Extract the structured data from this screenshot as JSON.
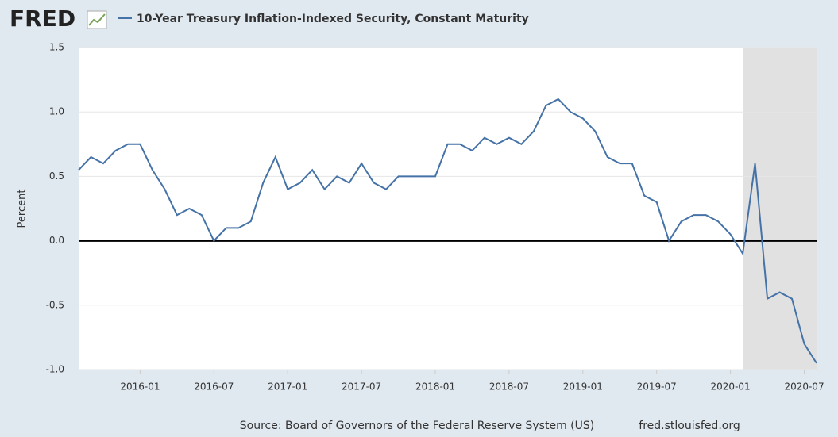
{
  "logo": "FRED",
  "chart_data": {
    "type": "line",
    "x": [
      "2015-08",
      "2015-09",
      "2015-10",
      "2015-11",
      "2015-12",
      "2016-01",
      "2016-02",
      "2016-03",
      "2016-04",
      "2016-05",
      "2016-06",
      "2016-07",
      "2016-08",
      "2016-09",
      "2016-10",
      "2016-11",
      "2016-12",
      "2017-01",
      "2017-02",
      "2017-03",
      "2017-04",
      "2017-05",
      "2017-06",
      "2017-07",
      "2017-08",
      "2017-09",
      "2017-10",
      "2017-11",
      "2017-12",
      "2018-01",
      "2018-02",
      "2018-03",
      "2018-04",
      "2018-05",
      "2018-06",
      "2018-07",
      "2018-08",
      "2018-09",
      "2018-10",
      "2018-11",
      "2018-12",
      "2019-01",
      "2019-02",
      "2019-03",
      "2019-04",
      "2019-05",
      "2019-06",
      "2019-07",
      "2019-08",
      "2019-09",
      "2019-10",
      "2019-11",
      "2019-12",
      "2020-01",
      "2020-02",
      "2020-03",
      "2020-04",
      "2020-05",
      "2020-06",
      "2020-07",
      "2020-08"
    ],
    "series": [
      {
        "name": "10-Year Treasury Inflation-Indexed Security, Constant Maturity",
        "color": "#4572a7",
        "values": [
          0.55,
          0.65,
          0.6,
          0.7,
          0.75,
          0.75,
          0.55,
          0.4,
          0.2,
          0.25,
          0.2,
          0.0,
          0.1,
          0.1,
          0.15,
          0.45,
          0.65,
          0.4,
          0.45,
          0.55,
          0.4,
          0.5,
          0.45,
          0.6,
          0.45,
          0.4,
          0.5,
          0.5,
          0.5,
          0.5,
          0.75,
          0.75,
          0.7,
          0.8,
          0.75,
          0.8,
          0.75,
          0.85,
          1.05,
          1.1,
          1.0,
          0.95,
          0.85,
          0.65,
          0.6,
          0.6,
          0.35,
          0.3,
          0.0,
          0.15,
          0.2,
          0.2,
          0.15,
          0.05,
          -0.1,
          0.6,
          -0.45,
          -0.4,
          -0.45,
          -0.8,
          -0.95
        ]
      }
    ],
    "xlim": [
      "2015-08",
      "2020-08"
    ],
    "xticks": [
      "2016-01",
      "2016-07",
      "2017-01",
      "2017-07",
      "2018-01",
      "2018-07",
      "2019-01",
      "2019-07",
      "2020-01",
      "2020-07"
    ],
    "ylim": [
      -1.0,
      1.5
    ],
    "yticks": [
      {
        "value": -1.0,
        "label": "-1.0"
      },
      {
        "value": -0.5,
        "label": "-0.5"
      },
      {
        "value": 0,
        "label": "0.0"
      },
      {
        "value": 0.5,
        "label": "0.5"
      },
      {
        "value": 1.0,
        "label": "1.0"
      },
      {
        "value": 1.5,
        "label": "1.5"
      }
    ],
    "ylabel": "Percent",
    "recession": [
      "2020-02",
      "2020-08"
    ],
    "grid": true,
    "source": "Source: Board of Governors of the Federal Reserve System (US)",
    "url": "fred.stlouisfed.org"
  }
}
